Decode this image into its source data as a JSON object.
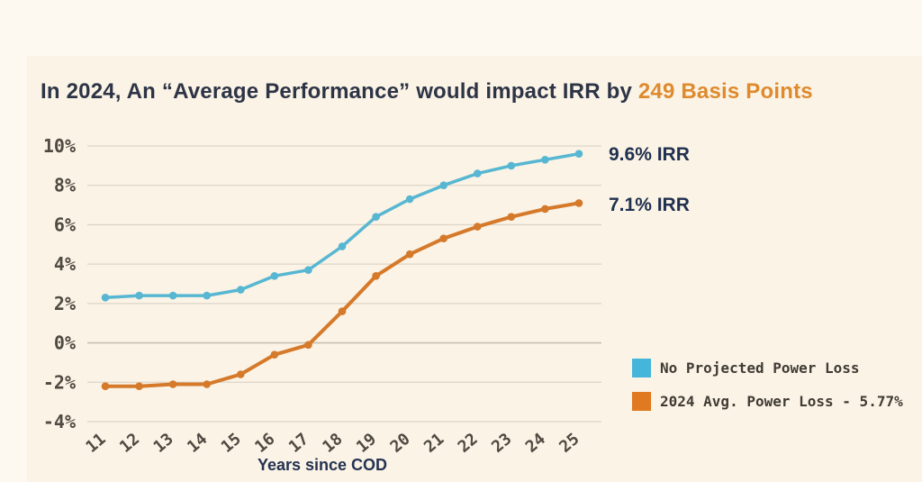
{
  "header": {
    "title_prefix": "In 2024, An “Average Performance” would impact IRR by ",
    "title_accent": "249 Basis Points"
  },
  "annotations": {
    "no_loss_irr": "9.6% IRR",
    "avg_loss_irr": "7.1% IRR"
  },
  "legend": {
    "items": [
      {
        "label": "No Projected Power Loss",
        "color": "#45b5d9"
      },
      {
        "label": "2024 Avg. Power Loss - 5.77%",
        "color": "#e0791f"
      }
    ]
  },
  "chart_data": {
    "type": "line",
    "x": [
      11,
      12,
      13,
      14,
      15,
      16,
      17,
      18,
      19,
      20,
      21,
      22,
      23,
      24,
      25
    ],
    "series": [
      {
        "name": "No Projected Power Loss",
        "color": "#57b7d2",
        "values": [
          2.3,
          2.4,
          2.4,
          2.4,
          2.7,
          3.4,
          3.7,
          4.9,
          6.4,
          7.3,
          8.0,
          8.6,
          9.0,
          9.3,
          9.6
        ]
      },
      {
        "name": "2024 Avg. Power Loss - 5.77%",
        "color": "#d5792a",
        "values": [
          -2.2,
          -2.2,
          -2.1,
          -2.1,
          -1.6,
          -0.6,
          -0.1,
          1.6,
          3.4,
          4.5,
          5.3,
          5.9,
          6.4,
          6.8,
          7.1
        ]
      }
    ],
    "xlabel": "Years since COD",
    "ylabel": "",
    "y_tick_labels": [
      "10%",
      "8%",
      "6%",
      "4%",
      "2%",
      "0%",
      "-2%",
      "-4%"
    ],
    "y_tick_values": [
      10,
      8,
      6,
      4,
      2,
      0,
      -2,
      -4
    ],
    "ylim": [
      -4,
      10
    ],
    "grid": true,
    "legend_position": "bottom-right",
    "end_labels": [
      "9.6% IRR",
      "7.1% IRR"
    ]
  },
  "colors": {
    "background": "#fdf9f0",
    "panel": "#fbf3e5",
    "title_text": "#2d3446",
    "title_accent": "#de8a2e",
    "grid_line": "#ddd5c7",
    "zero_line": "#c8c1b3",
    "tick_text": "#4f4a42"
  }
}
